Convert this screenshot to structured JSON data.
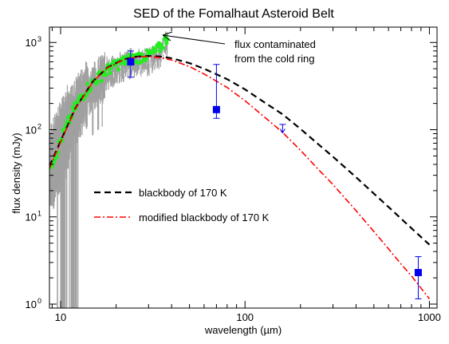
{
  "chart_data": {
    "type": "line",
    "title": "SED of the Fomalhaut Asteroid Belt",
    "xlabel": "wavelength (µm)",
    "ylabel": "flux density (mJy)",
    "xscale": "log",
    "yscale": "log",
    "xlim": [
      8.7,
      1100
    ],
    "ylim": [
      0.9,
      1500
    ],
    "x_ticks": [
      {
        "value": 10,
        "label": "10"
      },
      {
        "value": 100,
        "label": "100"
      },
      {
        "value": 1000,
        "label": "1000"
      }
    ],
    "y_ticks": [
      {
        "value": 1,
        "base": "10",
        "exp": "0"
      },
      {
        "value": 10,
        "base": "10",
        "exp": "1"
      },
      {
        "value": 100,
        "base": "10",
        "exp": "2"
      },
      {
        "value": 1000,
        "base": "10",
        "exp": "3"
      }
    ],
    "colors": {
      "blackbody": "#000000",
      "modified": "#ff0000",
      "spectrum_band": "#a0a0a0",
      "spectrum_points": "#22ee22",
      "photometry": "#0000ee"
    },
    "series": [
      {
        "name": "blackbody of 170 K",
        "style": "dashed",
        "x": [
          8.7,
          10,
          12,
          15,
          18,
          22,
          26,
          30,
          35,
          40,
          50,
          60,
          70,
          80,
          100,
          130,
          160,
          200,
          250,
          300,
          400,
          500,
          600,
          700,
          800,
          1000
        ],
        "y": [
          38,
          74,
          175,
          360,
          520,
          640,
          690,
          700,
          690,
          660,
          580,
          500,
          432,
          380,
          290,
          200,
          150,
          102,
          68,
          49,
          28.5,
          18.5,
          13,
          9.6,
          7.4,
          4.8
        ]
      },
      {
        "name": "modified blackbody of 170 K",
        "style": "dash-dot",
        "x": [
          8.7,
          10,
          12,
          15,
          18,
          22,
          26,
          30,
          35,
          40,
          50,
          60,
          70,
          80,
          100,
          130,
          160,
          200,
          250,
          300,
          400,
          500,
          600,
          700,
          800,
          1000
        ],
        "y": [
          36,
          72,
          172,
          356,
          515,
          635,
          684,
          690,
          670,
          630,
          530,
          435,
          360,
          305,
          215,
          135,
          93,
          58,
          35,
          23.5,
          11.8,
          6.8,
          4.3,
          2.9,
          2.1,
          1.15
        ]
      }
    ],
    "spectrum": {
      "x": [
        8.8,
        9.5,
        10,
        10.5,
        11,
        11.5,
        12,
        12.5,
        13,
        14,
        15,
        16,
        17,
        18,
        19,
        20,
        22,
        24,
        26,
        28,
        30,
        31,
        32,
        33,
        34,
        35,
        36,
        37,
        38
      ],
      "y": [
        40,
        55,
        75,
        95,
        120,
        150,
        180,
        210,
        240,
        300,
        350,
        400,
        440,
        490,
        520,
        560,
        610,
        650,
        680,
        700,
        710,
        740,
        760,
        800,
        850,
        900,
        980,
        1080,
        1150
      ]
    },
    "spectrum_label": "flux contaminated from the cold ring",
    "photometry": [
      {
        "x": 24,
        "y": 600,
        "y_low": 400,
        "y_high": 800
      },
      {
        "x": 70,
        "y": 170,
        "y_low": 135,
        "y_high": 560
      },
      {
        "x": 870,
        "y": 2.3,
        "y_low": 1.15,
        "y_high": 3.5
      }
    ],
    "upper_limits": [
      {
        "x": 160,
        "y": 92,
        "y_top": 115
      }
    ],
    "annotation": {
      "line1": "flux contaminated",
      "line2": "from the cold ring"
    },
    "legend": {
      "placement": "middle-left"
    }
  }
}
